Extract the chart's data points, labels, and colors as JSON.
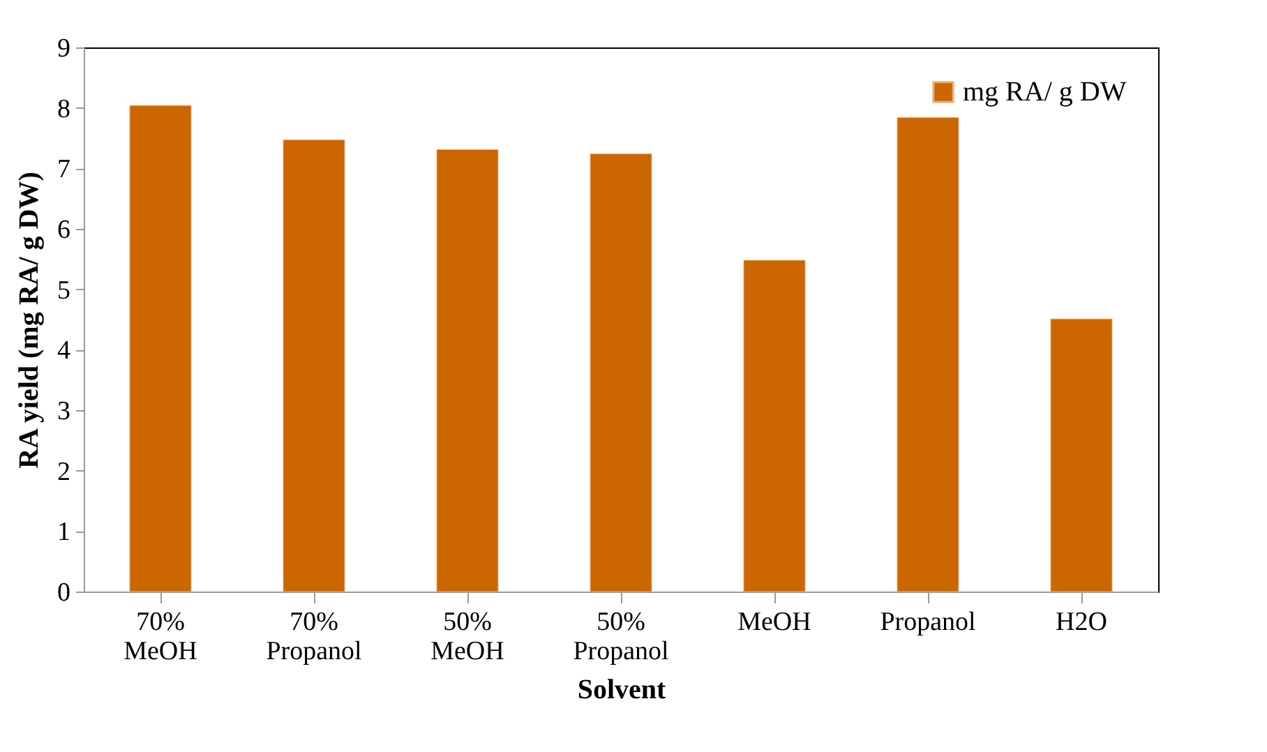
{
  "chart_data": {
    "type": "bar",
    "xlabel": "Solvent",
    "ylabel": "RA yield (mg RA/ g DW)",
    "categories": [
      "70% MeOH",
      "70% Propanol",
      "50% MeOH",
      "50% Propanol",
      "MeOH",
      "Propanol",
      "H2O"
    ],
    "series": [
      {
        "name": "mg RA/ g DW",
        "color": "#cc6600",
        "values": [
          8.04,
          7.47,
          7.31,
          7.24,
          5.48,
          7.84,
          4.51
        ]
      }
    ],
    "ylim": [
      0,
      9
    ],
    "yticks": [
      0,
      1,
      2,
      3,
      4,
      5,
      6,
      7,
      8,
      9
    ],
    "legend": "top right"
  }
}
